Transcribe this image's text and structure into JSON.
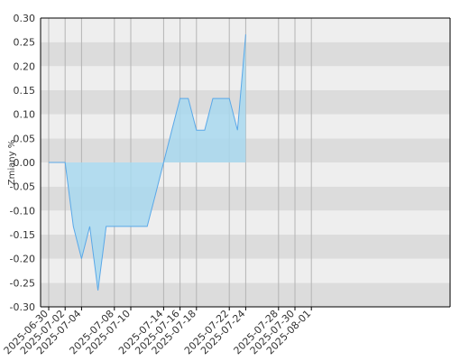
{
  "chart_data": {
    "type": "area",
    "title": "",
    "xlabel": "",
    "ylabel": "Zmiany %",
    "ylim": [
      -0.3,
      0.3
    ],
    "yticks": [
      -0.3,
      -0.25,
      -0.2,
      -0.15,
      -0.1,
      -0.05,
      0.0,
      0.05,
      0.1,
      0.15,
      0.2,
      0.25,
      0.3
    ],
    "ytick_labels": [
      "-0.30",
      "-0.25",
      "-0.20",
      "-0.15",
      "-0.10",
      "-0.05",
      "0.00",
      "0.05",
      "0.10",
      "0.15",
      "0.20",
      "0.25",
      "0.30"
    ],
    "xlim": [
      "2025-06-30",
      "2025-08-02"
    ],
    "xticks": [
      "2025-06-30",
      "2025-07-02",
      "2025-07-04",
      "2025-07-08",
      "2025-07-10",
      "2025-07-14",
      "2025-07-16",
      "2025-07-18",
      "2025-07-22",
      "2025-07-24",
      "2025-07-28",
      "2025-07-30",
      "2025-08-01"
    ],
    "grid": true,
    "legend": "none",
    "colors": {
      "line": "#5aa8e8",
      "fill": "#a8d8ee",
      "band_dark": "#dcdcdc",
      "band_light": "#eeeeee",
      "grid": "#b4b4b4",
      "axis": "#000000"
    },
    "points": [
      {
        "x": "2025-06-30",
        "y": 0.0
      },
      {
        "x": "2025-07-01",
        "y": 0.0
      },
      {
        "x": "2025-07-02",
        "y": 0.0
      },
      {
        "x": "2025-07-03",
        "y": -0.133
      },
      {
        "x": "2025-07-04",
        "y": -0.2
      },
      {
        "x": "2025-07-05",
        "y": -0.133
      },
      {
        "x": "2025-07-06",
        "y": -0.266
      },
      {
        "x": "2025-07-07",
        "y": -0.133
      },
      {
        "x": "2025-07-08",
        "y": -0.133
      },
      {
        "x": "2025-07-09",
        "y": -0.133
      },
      {
        "x": "2025-07-10",
        "y": -0.133
      },
      {
        "x": "2025-07-11",
        "y": -0.133
      },
      {
        "x": "2025-07-12",
        "y": -0.133
      },
      {
        "x": "2025-07-13",
        "y": -0.067
      },
      {
        "x": "2025-07-14",
        "y": 0.0
      },
      {
        "x": "2025-07-15",
        "y": 0.067
      },
      {
        "x": "2025-07-16",
        "y": 0.133
      },
      {
        "x": "2025-07-17",
        "y": 0.133
      },
      {
        "x": "2025-07-18",
        "y": 0.067
      },
      {
        "x": "2025-07-19",
        "y": 0.067
      },
      {
        "x": "2025-07-20",
        "y": 0.133
      },
      {
        "x": "2025-07-21",
        "y": 0.133
      },
      {
        "x": "2025-07-22",
        "y": 0.133
      },
      {
        "x": "2025-07-23",
        "y": 0.067
      },
      {
        "x": "2025-07-24",
        "y": 0.266
      }
    ]
  }
}
